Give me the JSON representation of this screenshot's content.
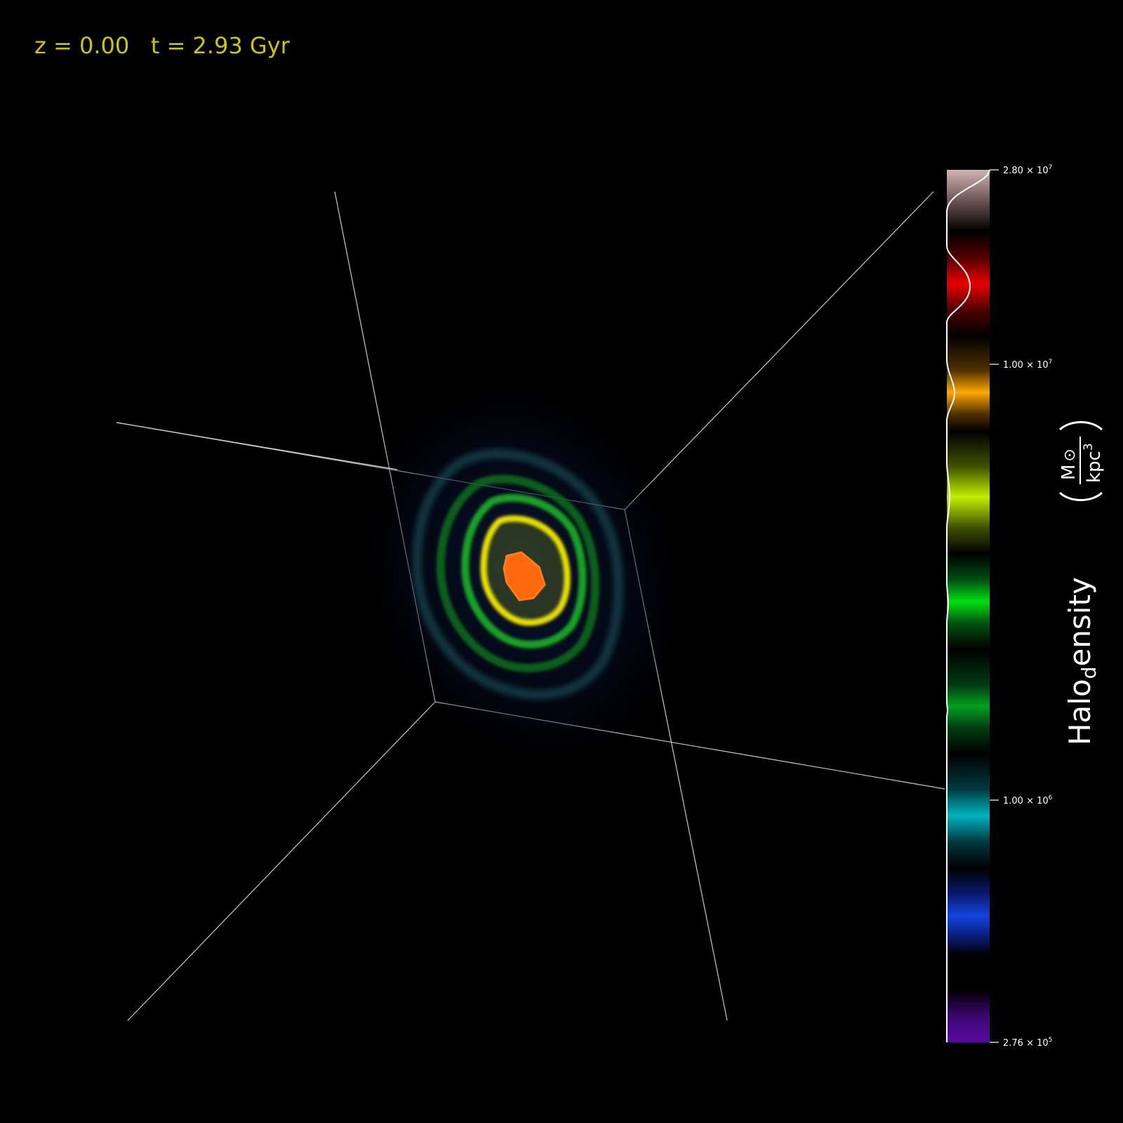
{
  "header": {
    "redshift_label": "z = 0.00",
    "time_label": "t = 2.93 Gyr"
  },
  "colorbar": {
    "title_main": "Halo",
    "title_sub": "d",
    "title_tail": "ensity",
    "unit_numerator": "M",
    "unit_numerator_sub": "⊙",
    "unit_denominator": "kpc",
    "unit_denominator_sup": "3",
    "ticks": [
      {
        "mantissa": "2.80",
        "exp": "7"
      },
      {
        "mantissa": "1.00",
        "exp": "7"
      },
      {
        "mantissa": "1.00",
        "exp": "6"
      },
      {
        "mantissa": "2.76",
        "exp": "5"
      }
    ]
  },
  "colors": {
    "background": "#000000",
    "text_accent": "#c8c514",
    "box_lines": "#c8c8c8"
  }
}
